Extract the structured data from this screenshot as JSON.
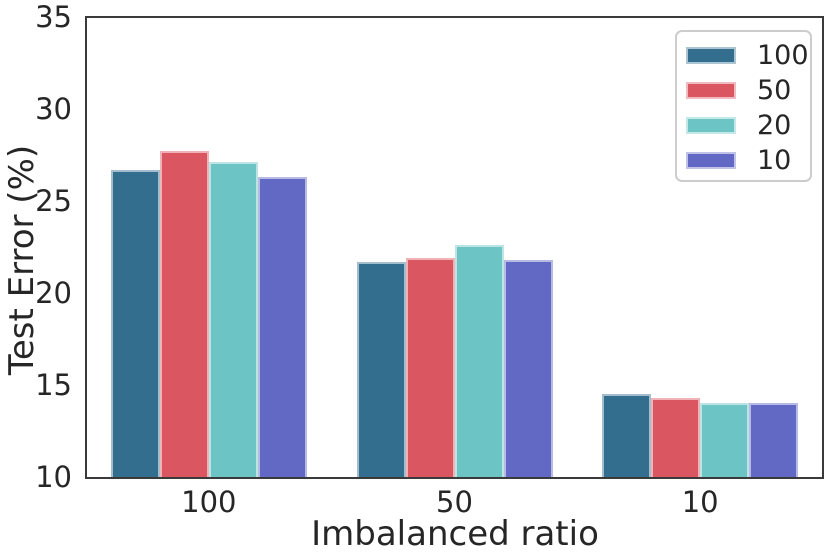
{
  "figure": {
    "background": "#ffffff",
    "text_color": "#262626",
    "spine_color": "#3a3a3a",
    "legend_border_color": "#cccccc"
  },
  "chart_data": {
    "type": "bar",
    "title": "",
    "xlabel": "Imbalanced ratio",
    "ylabel": "Test Error (%)",
    "categories": [
      "100",
      "50",
      "10"
    ],
    "series": [
      {
        "name": "100",
        "color": "#336E8E",
        "values": [
          26.7,
          21.7,
          14.5
        ]
      },
      {
        "name": "50",
        "color": "#DA5661",
        "values": [
          27.7,
          21.9,
          14.3
        ]
      },
      {
        "name": "20",
        "color": "#6DC4C4",
        "values": [
          27.1,
          22.6,
          14.0
        ]
      },
      {
        "name": "10",
        "color": "#6169C4",
        "values": [
          26.3,
          21.8,
          14.0
        ]
      }
    ],
    "ylim": [
      10,
      35
    ],
    "yticks": [
      10,
      15,
      20,
      25,
      30,
      35
    ],
    "legend_position": "upper right",
    "grid": false
  }
}
